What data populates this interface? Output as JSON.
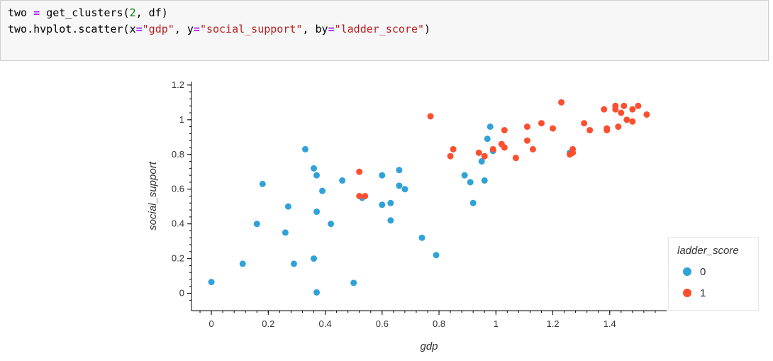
{
  "code_cell": {
    "line1": {
      "v1": "two",
      "eq": "=",
      "fn": "get_clusters(",
      "n": "2",
      "rest": ", df)"
    },
    "line2": {
      "p1": "two.hvplot.scatter(x",
      "eq1": "=",
      "s1": "\"gdp\"",
      "p2": ", y",
      "eq2": "=",
      "s2": "\"social_support\"",
      "p3": ", by",
      "eq3": "=",
      "s3": "\"ladder_score\"",
      "p4": ")"
    }
  },
  "colors": {
    "series0": "#30a2da",
    "series1": "#fc4f30"
  },
  "chart_data": {
    "type": "scatter",
    "title": "",
    "xlabel": "gdp",
    "ylabel": "social_support",
    "xlim": [
      -0.07,
      1.6
    ],
    "ylim": [
      -0.1,
      1.22
    ],
    "xticks": [
      "0",
      "0.2",
      "0.4",
      "0.6",
      "0.8",
      "1",
      "1.2",
      "1.4"
    ],
    "yticks": [
      "0",
      "0.2",
      "0.4",
      "0.6",
      "0.8",
      "1",
      "1.2"
    ],
    "legend": {
      "title": "ladder_score",
      "placement": "right"
    },
    "series": [
      {
        "name": "0",
        "color": "#30a2da",
        "points": [
          [
            0.0,
            0.065
          ],
          [
            0.11,
            0.17
          ],
          [
            0.16,
            0.4
          ],
          [
            0.18,
            0.63
          ],
          [
            0.26,
            0.35
          ],
          [
            0.27,
            0.5
          ],
          [
            0.29,
            0.17
          ],
          [
            0.33,
            0.83
          ],
          [
            0.36,
            0.2
          ],
          [
            0.37,
            0.47
          ],
          [
            0.36,
            0.72
          ],
          [
            0.37,
            0.68
          ],
          [
            0.37,
            0.005
          ],
          [
            0.39,
            0.59
          ],
          [
            0.42,
            0.4
          ],
          [
            0.46,
            0.65
          ],
          [
            0.5,
            0.06
          ],
          [
            0.53,
            0.55
          ],
          [
            0.6,
            0.51
          ],
          [
            0.6,
            0.68
          ],
          [
            0.63,
            0.52
          ],
          [
            0.63,
            0.42
          ],
          [
            0.66,
            0.62
          ],
          [
            0.66,
            0.71
          ],
          [
            0.68,
            0.6
          ],
          [
            0.74,
            0.32
          ],
          [
            0.79,
            0.22
          ],
          [
            0.89,
            0.68
          ],
          [
            0.91,
            0.64
          ],
          [
            0.92,
            0.52
          ],
          [
            0.95,
            0.76
          ],
          [
            0.96,
            0.65
          ],
          [
            0.97,
            0.89
          ],
          [
            0.98,
            0.96
          ],
          [
            0.99,
            0.82
          ],
          [
            1.26,
            0.81
          ]
        ]
      },
      {
        "name": "1",
        "color": "#fc4f30",
        "points": [
          [
            0.52,
            0.7
          ],
          [
            0.52,
            0.56
          ],
          [
            0.54,
            0.56
          ],
          [
            0.77,
            1.02
          ],
          [
            0.84,
            0.79
          ],
          [
            0.85,
            0.83
          ],
          [
            0.94,
            0.81
          ],
          [
            0.96,
            0.79
          ],
          [
            0.99,
            0.83
          ],
          [
            1.02,
            0.86
          ],
          [
            1.03,
            0.84
          ],
          [
            1.03,
            0.94
          ],
          [
            1.07,
            0.78
          ],
          [
            1.11,
            0.88
          ],
          [
            1.11,
            0.96
          ],
          [
            1.13,
            0.83
          ],
          [
            1.16,
            0.98
          ],
          [
            1.2,
            0.95
          ],
          [
            1.23,
            1.1
          ],
          [
            1.26,
            0.8
          ],
          [
            1.27,
            0.81
          ],
          [
            1.27,
            0.83
          ],
          [
            1.31,
            0.98
          ],
          [
            1.33,
            0.94
          ],
          [
            1.38,
            1.06
          ],
          [
            1.39,
            0.95
          ],
          [
            1.39,
            0.94
          ],
          [
            1.42,
            1.08
          ],
          [
            1.42,
            1.06
          ],
          [
            1.43,
            0.96
          ],
          [
            1.44,
            1.04
          ],
          [
            1.45,
            1.08
          ],
          [
            1.46,
            1.0
          ],
          [
            1.48,
            0.99
          ],
          [
            1.48,
            1.06
          ],
          [
            1.5,
            1.08
          ],
          [
            1.53,
            1.03
          ]
        ]
      }
    ]
  }
}
